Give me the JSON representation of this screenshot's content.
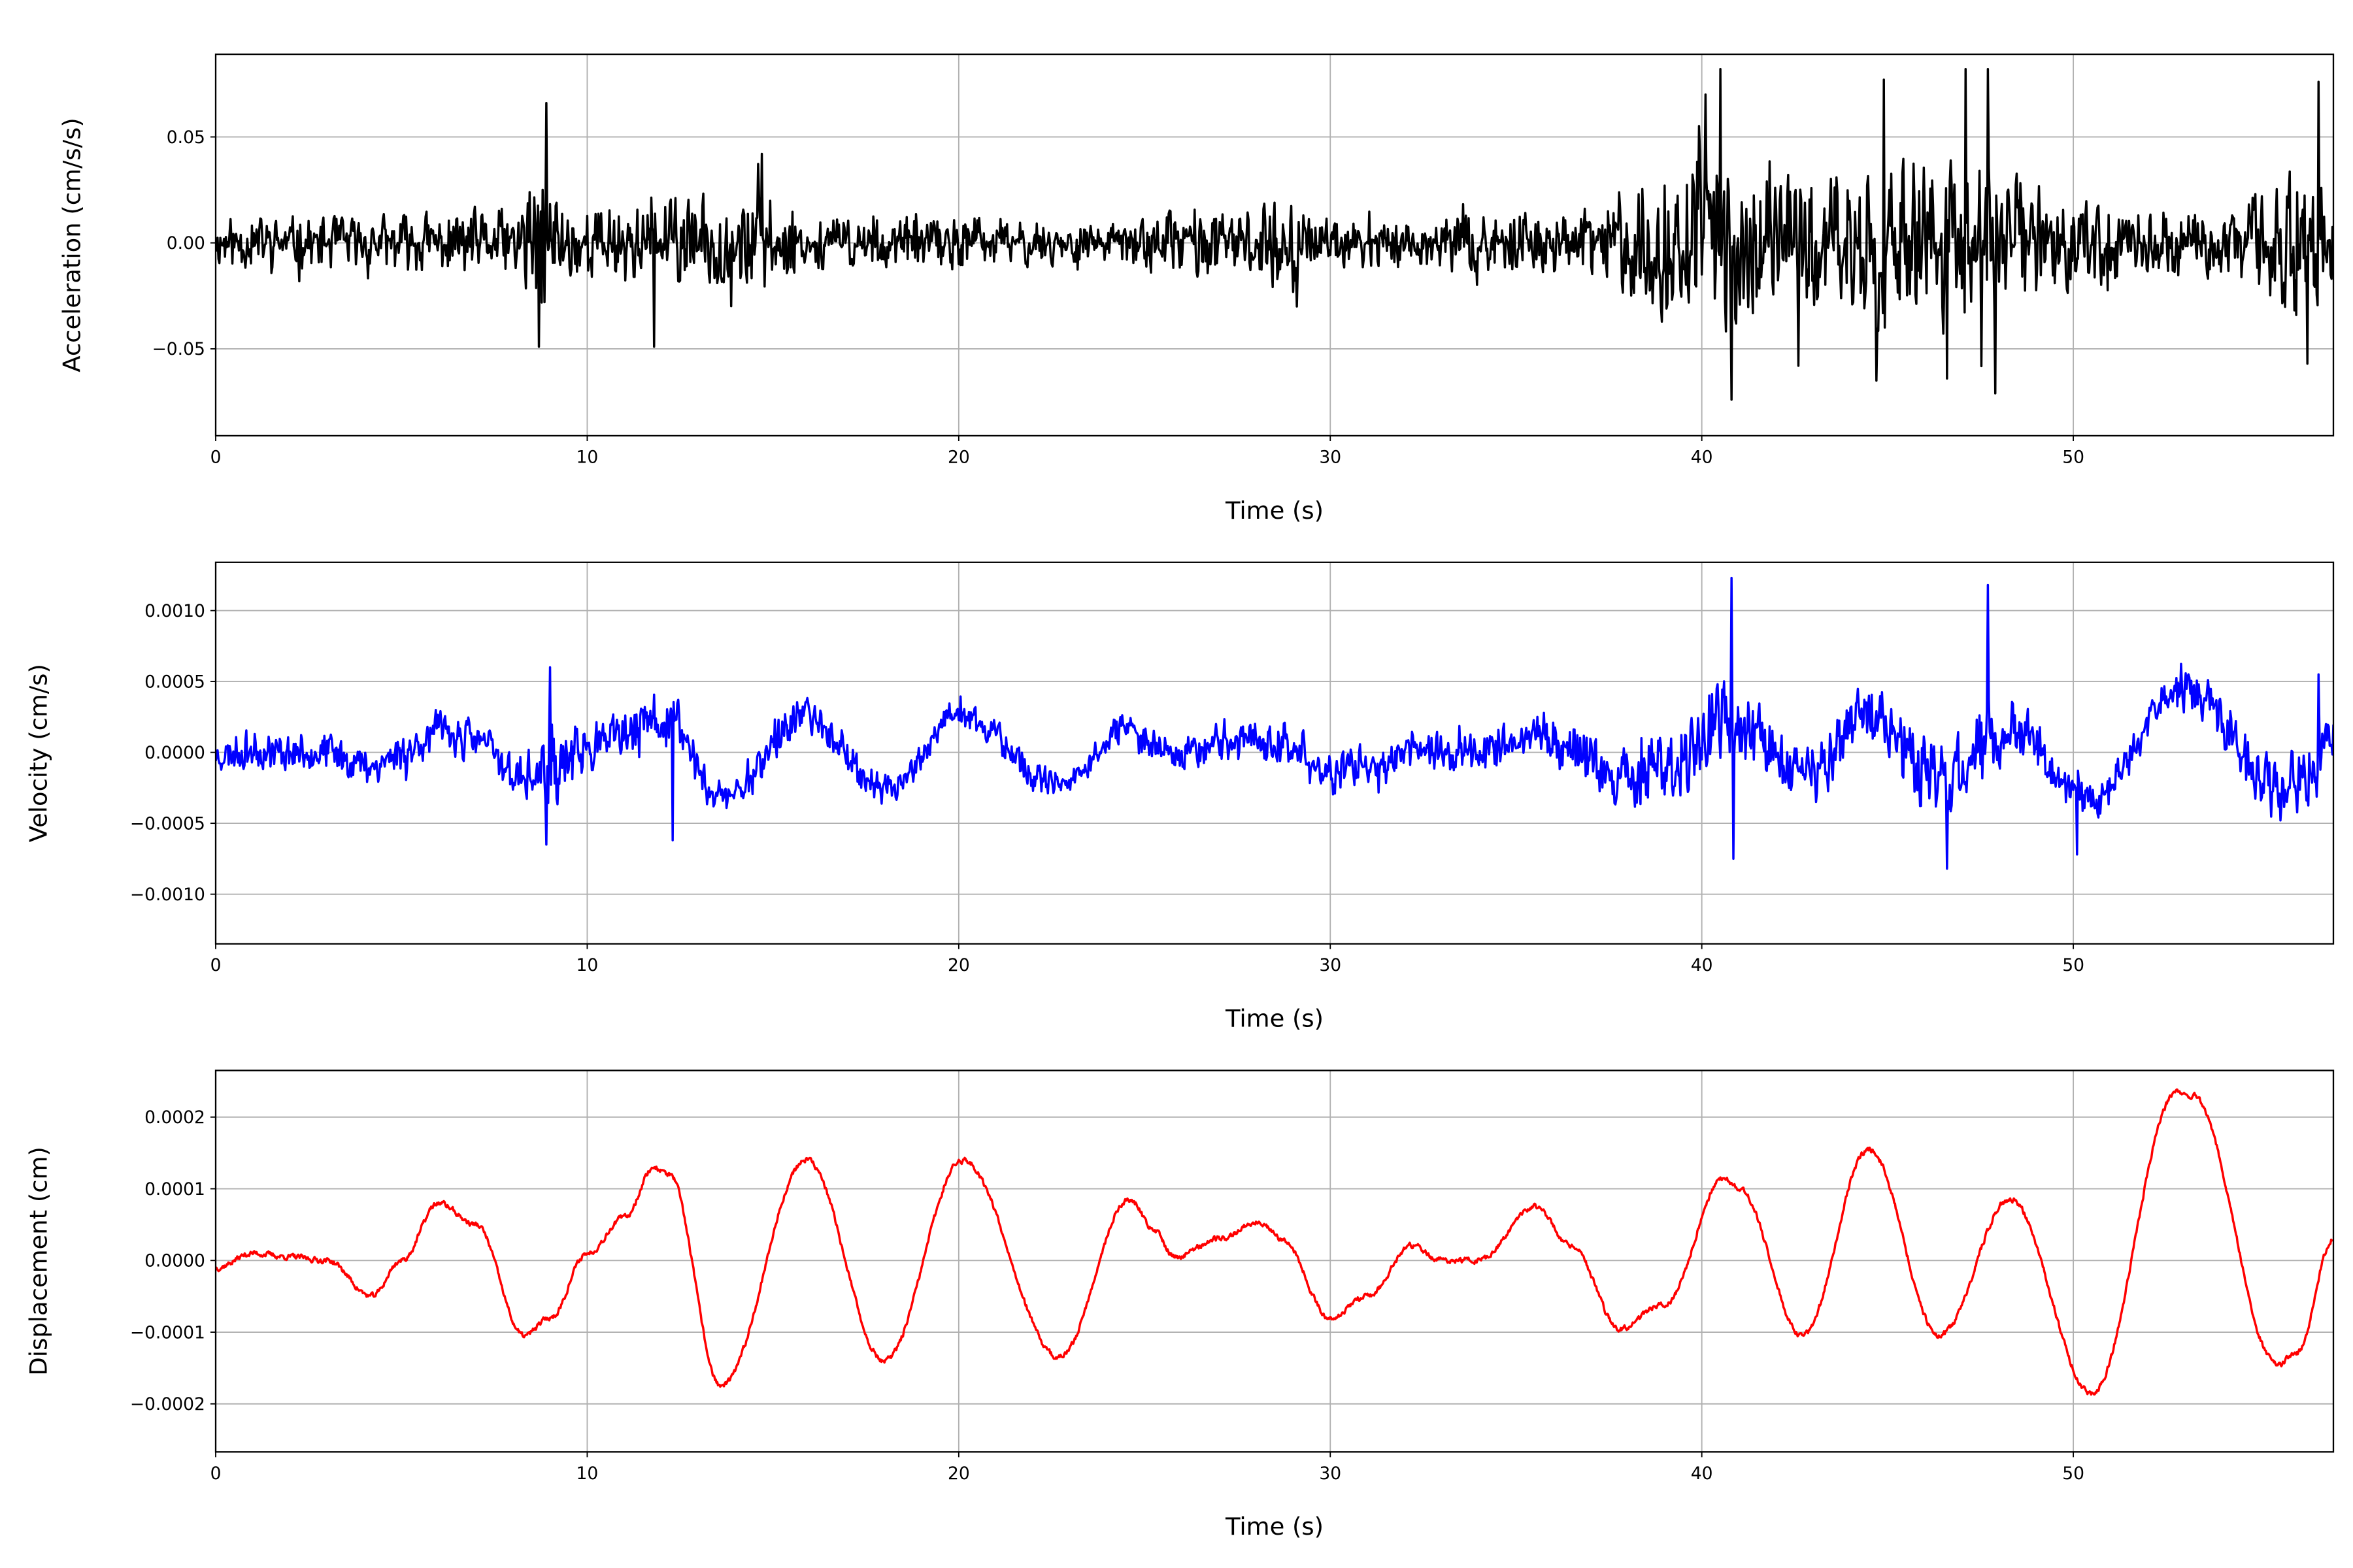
{
  "chart_data": [
    {
      "type": "line",
      "title": "",
      "xlabel": "Time (s)",
      "ylabel": "Acceleration (cm/s/s)",
      "xlim": [
        0,
        57
      ],
      "ylim": [
        -0.091,
        0.089
      ],
      "xticks": [
        0,
        10,
        20,
        30,
        40,
        50
      ],
      "xtick_labels": [
        "0",
        "10",
        "20",
        "30",
        "40",
        "50"
      ],
      "yticks": [
        -0.05,
        0,
        0.05
      ],
      "ytick_labels": [
        "−0.05",
        "0.00",
        "0.05"
      ],
      "grid": true,
      "color": "#000000",
      "series": [
        {
          "name": "Acceleration",
          "kind": "noise",
          "sample_rate_hz": 40,
          "seed": 11,
          "envelope_t": [
            0,
            4,
            8,
            8.8,
            9.6,
            12,
            14.7,
            16,
            20,
            24,
            26.3,
            27.5,
            29,
            29.5,
            33,
            37,
            38.5,
            40.8,
            42,
            44.7,
            47,
            48,
            50,
            54,
            56.3,
            57
          ],
          "envelope_amp": [
            0.011,
            0.012,
            0.015,
            0.035,
            0.016,
            0.018,
            0.022,
            0.011,
            0.012,
            0.008,
            0.016,
            0.012,
            0.022,
            0.01,
            0.012,
            0.015,
            0.03,
            0.038,
            0.028,
            0.034,
            0.038,
            0.034,
            0.018,
            0.014,
            0.035,
            0.02
          ],
          "spikes": [
            [
              8.9,
              0.066
            ],
            [
              8.7,
              -0.049
            ],
            [
              11.8,
              -0.049
            ],
            [
              14.7,
              0.042
            ],
            [
              29.1,
              -0.03
            ],
            [
              40.1,
              0.07
            ],
            [
              40.5,
              0.082
            ],
            [
              40.8,
              -0.074
            ],
            [
              42.6,
              -0.058
            ],
            [
              44.7,
              -0.065
            ],
            [
              44.9,
              0.077
            ],
            [
              46.6,
              -0.064
            ],
            [
              47.1,
              0.082
            ],
            [
              47.7,
              0.082
            ],
            [
              47.9,
              -0.071
            ],
            [
              56.3,
              -0.057
            ],
            [
              56.6,
              0.076
            ]
          ]
        }
      ]
    },
    {
      "type": "line",
      "title": "",
      "xlabel": "Time (s)",
      "ylabel": "Velocity (cm/s)",
      "xlim": [
        0,
        57
      ],
      "ylim": [
        -0.00135,
        0.00134
      ],
      "xticks": [
        0,
        10,
        20,
        30,
        40,
        50
      ],
      "xtick_labels": [
        "0",
        "10",
        "20",
        "30",
        "40",
        "50"
      ],
      "yticks": [
        -0.001,
        -0.0005,
        0,
        0.0005,
        0.001
      ],
      "ytick_labels": [
        "−0.0010",
        "−0.0005",
        "0.0000",
        "0.0005",
        "0.0010"
      ],
      "grid": true,
      "color": "#0000ff",
      "series": [
        {
          "name": "Velocity",
          "kind": "noise_plus_trend",
          "sample_rate_hz": 40,
          "seed": 23,
          "trend_scale": 1.8,
          "envelope_t": [
            0,
            8,
            9,
            10,
            12,
            16,
            20,
            26,
            29,
            33,
            37,
            40.5,
            42,
            44.5,
            47.5,
            49,
            52,
            56.5,
            57
          ],
          "envelope_amp": [
            0.00012,
            0.00014,
            0.00025,
            0.00014,
            0.00018,
            0.00012,
            0.0001,
            0.00012,
            0.00016,
            0.00012,
            0.00017,
            0.00028,
            0.0002,
            0.00022,
            0.00028,
            0.00016,
            0.00012,
            0.00024,
            0.00018
          ],
          "spikes": [
            [
              8.9,
              -0.00065
            ],
            [
              9.0,
              0.0006
            ],
            [
              12.3,
              -0.00062
            ],
            [
              40.8,
              0.00123
            ],
            [
              40.85,
              -0.00075
            ],
            [
              46.6,
              -0.00082
            ],
            [
              47.7,
              0.00118
            ],
            [
              50.1,
              -0.00072
            ],
            [
              56.6,
              0.00055
            ]
          ]
        }
      ]
    },
    {
      "type": "line",
      "title": "",
      "xlabel": "Time (s)",
      "ylabel": "Displacement (cm)",
      "xlim": [
        0,
        57
      ],
      "ylim": [
        -0.000267,
        0.000265
      ],
      "xticks": [
        0,
        10,
        20,
        30,
        40,
        50
      ],
      "xtick_labels": [
        "0",
        "10",
        "20",
        "30",
        "40",
        "50"
      ],
      "yticks": [
        -0.0002,
        -0.0001,
        0,
        0.0001,
        0.0002
      ],
      "ytick_labels": [
        "−0.0002",
        "−0.0001",
        "0.0000",
        "0.0001",
        "0.0002"
      ],
      "grid": true,
      "color": "#ff0000",
      "series": [
        {
          "name": "Displacement",
          "kind": "keypoints",
          "seed": 37,
          "t": [
            0,
            1,
            2,
            3,
            4.2,
            5,
            6,
            7,
            8.3,
            9,
            10,
            11,
            11.8,
            12.2,
            13.6,
            15.9,
            18,
            20.1,
            22.7,
            24.6,
            25.3,
            25.8,
            27,
            28.1,
            28.7,
            30,
            31,
            32.2,
            33,
            34,
            35.5,
            36.5,
            37.8,
            39,
            40.6,
            41,
            42.7,
            44.5,
            46.4,
            48.3,
            50.5,
            52.8,
            53.2,
            55.5,
            56,
            57
          ],
          "y": [
            -1e-05,
            1e-05,
            5e-06,
            0,
            -5e-05,
            0,
            8e-05,
            5e-05,
            -0.000105,
            -8e-05,
            1e-05,
            6e-05,
            0.00013,
            0.00012,
            -0.000175,
            0.00014,
            -0.00014,
            0.00014,
            -0.000135,
            8.5e-05,
            4e-05,
            5e-06,
            3e-05,
            5.5e-05,
            3e-05,
            -8e-05,
            -5e-05,
            2e-05,
            0,
            0,
            7.5e-05,
            2e-05,
            -9.5e-05,
            -6e-05,
            0.000115,
            0.0001,
            -0.000105,
            0.000155,
            -0.000105,
            8.5e-05,
            -0.000185,
            0.000235,
            0.00023,
            -0.000145,
            -0.00013,
            3e-05
          ]
        }
      ]
    }
  ]
}
